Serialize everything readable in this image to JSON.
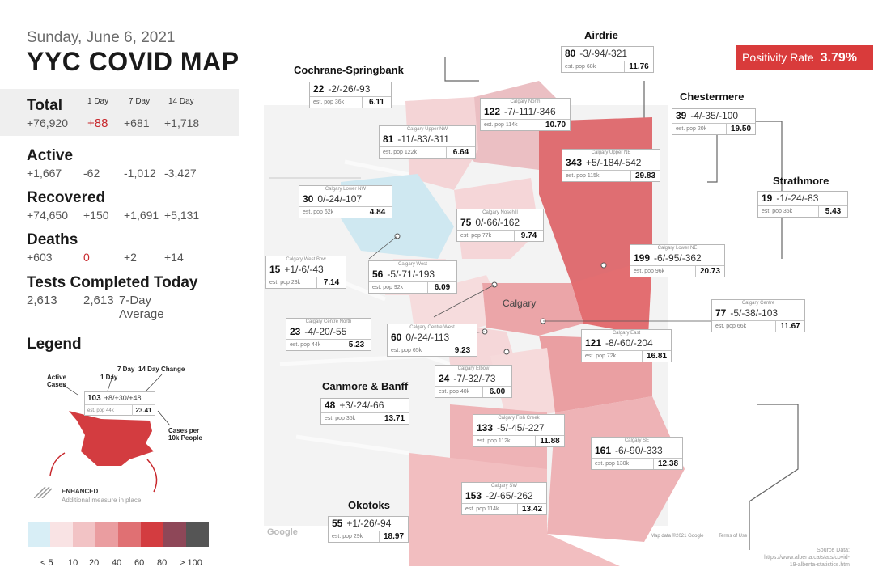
{
  "header": {
    "date": "Sunday, June 6, 2021",
    "title": "YYC COVID MAP"
  },
  "column_headers": {
    "d1": "1 Day",
    "d7": "7 Day",
    "d14": "14 Day"
  },
  "stats": {
    "total": {
      "label": "Total",
      "value": "+76,920",
      "d1": "+88",
      "d7": "+681",
      "d14": "+1,718"
    },
    "active": {
      "label": "Active",
      "value": "+1,667",
      "d1": "-62",
      "d7": "-1,012",
      "d14": "-3,427"
    },
    "recovered": {
      "label": "Recovered",
      "value": "+74,650",
      "d1": "+150",
      "d7": "+1,691",
      "d14": "+5,131"
    },
    "deaths": {
      "label": "Deaths",
      "value": "+603",
      "d1": "0",
      "d7": "+2",
      "d14": "+14"
    },
    "tests": {
      "label": "Tests Completed Today",
      "value": "2,613",
      "avg_value": "2,613",
      "avg_label": "7-Day Average"
    }
  },
  "legend": {
    "title": "Legend",
    "active_cases": "Active Cases",
    "one_day": "1 Day",
    "seven_day": "7 Day",
    "fourteen_day": "14 Day Change",
    "cases_per_10k": "Cases per 10k People",
    "sample_cases": "103",
    "sample_change": "+8/+30/+48",
    "sample_pop": "est. pop 44k",
    "sample_rate": "23.41",
    "enhanced": "ENHANCED",
    "enhanced_sub": "Additional measure in place",
    "scale_labels": [
      "< 5",
      "10",
      "20",
      "40",
      "60",
      "80",
      "> 100"
    ],
    "scale_colors": [
      "#d8eef6",
      "#f9e3e4",
      "#f2c3c5",
      "#ea9da0",
      "#e07073",
      "#d33c40",
      "#8e4758",
      "#555555"
    ]
  },
  "positivity": {
    "label": "Positivity Rate",
    "value": "3.79%"
  },
  "places": {
    "airdrie": "Airdrie",
    "cochrane": "Cochrane-Springbank",
    "chestermere": "Chestermere",
    "strathmore": "Strathmore",
    "canmore": "Canmore & Banff",
    "okotoks": "Okotoks",
    "calgary": "Calgary"
  },
  "regions": [
    {
      "key": "airdrie",
      "name": "",
      "cases": "80",
      "change": "-3/-94/-321",
      "pop": "est. pop 68k",
      "rate": "11.76",
      "color": "#ea9da0"
    },
    {
      "key": "cochrane",
      "name": "",
      "cases": "22",
      "change": "-2/-26/-93",
      "pop": "est. pop 36k",
      "rate": "6.11",
      "color": "#f2c3c5"
    },
    {
      "key": "north",
      "name": "Calgary North",
      "cases": "122",
      "change": "-7/-111/-346",
      "pop": "est. pop 114k",
      "rate": "10.70",
      "color": "#ea9da0"
    },
    {
      "key": "upper_nw",
      "name": "Calgary Upper NW",
      "cases": "81",
      "change": "-11/-83/-311",
      "pop": "est. pop 122k",
      "rate": "6.64",
      "color": "#f2c3c5"
    },
    {
      "key": "chestermere",
      "name": "",
      "cases": "39",
      "change": "-4/-35/-100",
      "pop": "est. pop 20k",
      "rate": "19.50",
      "color": "#ea9da0"
    },
    {
      "key": "upper_ne",
      "name": "Calgary Upper NE",
      "cases": "343",
      "change": "+5/-184/-542",
      "pop": "est. pop 115k",
      "rate": "29.83",
      "color": "#e07073"
    },
    {
      "key": "lower_nw",
      "name": "Calgary Lower NW",
      "cases": "30",
      "change": "0/-24/-107",
      "pop": "est. pop 62k",
      "rate": "4.84",
      "color": "#d8eef6"
    },
    {
      "key": "nosehill",
      "name": "Calgary Nosehill",
      "cases": "75",
      "change": "0/-66/-162",
      "pop": "est. pop 77k",
      "rate": "9.74",
      "color": "#f2c3c5"
    },
    {
      "key": "strathmore",
      "name": "",
      "cases": "19",
      "change": "-1/-24/-83",
      "pop": "est. pop 35k",
      "rate": "5.43",
      "color": "#f2c3c5"
    },
    {
      "key": "west_bow",
      "name": "Calgary West Bow",
      "cases": "15",
      "change": "+1/-6/-43",
      "pop": "est. pop 23k",
      "rate": "7.14",
      "color": "#f2c3c5"
    },
    {
      "key": "west",
      "name": "Calgary West",
      "cases": "56",
      "change": "-5/-71/-193",
      "pop": "est. pop 92k",
      "rate": "6.09",
      "color": "#f2c3c5"
    },
    {
      "key": "lower_ne",
      "name": "Calgary Lower NE",
      "cases": "199",
      "change": "-6/-95/-362",
      "pop": "est. pop 96k",
      "rate": "20.73",
      "color": "#e07073"
    },
    {
      "key": "centre",
      "name": "Calgary Centre",
      "cases": "77",
      "change": "-5/-38/-103",
      "pop": "est. pop 66k",
      "rate": "11.67",
      "color": "#ea9da0"
    },
    {
      "key": "centre_north",
      "name": "Calgary Centre North",
      "cases": "23",
      "change": "-4/-20/-55",
      "pop": "est. pop 44k",
      "rate": "5.23",
      "color": "#f2c3c5"
    },
    {
      "key": "centre_west",
      "name": "Calgary Centre West",
      "cases": "60",
      "change": "0/-24/-113",
      "pop": "est. pop 65k",
      "rate": "9.23",
      "color": "#f2c3c5"
    },
    {
      "key": "east",
      "name": "Calgary East",
      "cases": "121",
      "change": "-8/-60/-204",
      "pop": "est. pop 72k",
      "rate": "16.81",
      "color": "#ea9da0"
    },
    {
      "key": "elbow",
      "name": "Calgary Elbow",
      "cases": "24",
      "change": "-7/-32/-73",
      "pop": "est. pop 40k",
      "rate": "6.00",
      "color": "#f2c3c5"
    },
    {
      "key": "canmore",
      "name": "",
      "cases": "48",
      "change": "+3/-24/-66",
      "pop": "est. pop 35k",
      "rate": "13.71",
      "color": "#ea9da0"
    },
    {
      "key": "fish_creek",
      "name": "Calgary Fish Creek",
      "cases": "133",
      "change": "-5/-45/-227",
      "pop": "est. pop 112k",
      "rate": "11.88",
      "color": "#ea9da0"
    },
    {
      "key": "se",
      "name": "Calgary SE",
      "cases": "161",
      "change": "-6/-90/-333",
      "pop": "est. pop 130k",
      "rate": "12.38",
      "color": "#ea9da0"
    },
    {
      "key": "sw",
      "name": "Calgary SW",
      "cases": "153",
      "change": "-2/-65/-262",
      "pop": "est. pop 114k",
      "rate": "13.42",
      "color": "#ea9da0"
    },
    {
      "key": "okotoks",
      "name": "",
      "cases": "55",
      "change": "+1/-26/-94",
      "pop": "est. pop 29k",
      "rate": "18.97",
      "color": "#ea9da0"
    }
  ],
  "map_labels": {
    "google": "Google",
    "map_data": "Map data ©2021 Google",
    "terms": "Terms of Use",
    "source_title": "Source Data:",
    "source_url": "https://www.alberta.ca/stats/covid-19-alberta-statistics.htm"
  }
}
